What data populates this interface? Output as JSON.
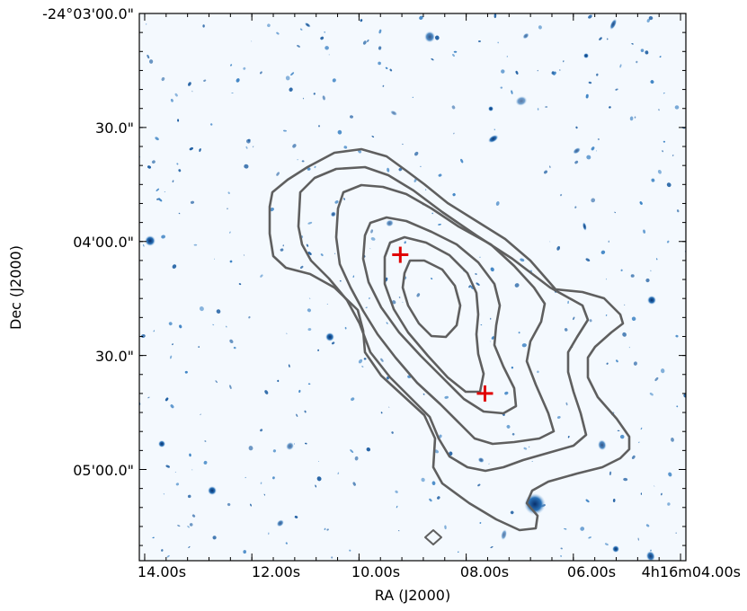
{
  "chart_data": {
    "type": "contour",
    "title": "",
    "xlabel": "RA (J2000)",
    "ylabel": "Dec (J2000)",
    "x_ticks": [
      "14.00s",
      "12.00s",
      "10.00s",
      "08.00s",
      "06.00s",
      "4h16m04.00s"
    ],
    "y_ticks": [
      "-24°03'00.0\"",
      "30.0\"",
      "04'00.0\"",
      "30.0\"",
      "05'00.0\""
    ],
    "x_tick_seconds": [
      14,
      12,
      10,
      8,
      6,
      4
    ],
    "y_tick_arcsec": [
      0,
      30,
      60,
      90,
      120
    ],
    "xlim_seconds": [
      14.1,
      3.9
    ],
    "ylim_arcsec_offset": [
      0,
      144
    ],
    "colormap": "Blues",
    "contour_color": "#5f5f5f",
    "marker_color": "#e00000",
    "markers": [
      {
        "ra_s": 9.23,
        "dec_arcsec": 63.5,
        "symbol": "+"
      },
      {
        "ra_s": 7.65,
        "dec_arcsec": 100.0,
        "symbol": "+"
      }
    ],
    "beam": {
      "ra_s": 8.9,
      "dec_arcsec": 137.5,
      "shape": "diamond"
    },
    "grid": false
  }
}
